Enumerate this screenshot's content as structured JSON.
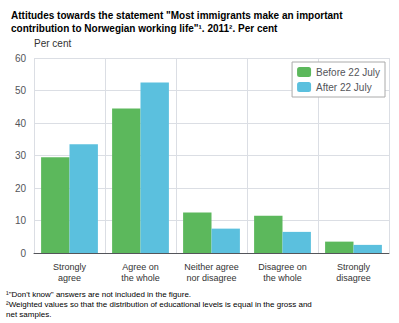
{
  "chart_data": {
    "type": "bar",
    "title": "Attitudes towards the statement \"Most immigrants make an important\ncontribution to Norwegian working life\"¹. 2011². Per cent",
    "ylabel": "Per cent",
    "categories": [
      "Strongly\nagree",
      "Agree on\nthe whole",
      "Neither agree\nnor disagree",
      "Disagree on\nthe whole",
      "Strongly\ndisagree"
    ],
    "series": [
      {
        "name": "Before 22 July",
        "color": "#5cb85c",
        "values": [
          29.5,
          44.5,
          12.5,
          11.5,
          3.5
        ]
      },
      {
        "name": "After 22 July",
        "color": "#5bc0de",
        "values": [
          33.5,
          52.5,
          7.5,
          6.5,
          2.5
        ]
      }
    ],
    "ylim": [
      0,
      60
    ],
    "yticks": [
      0,
      10,
      20,
      30,
      40,
      50,
      60
    ],
    "grid": true,
    "legend": "upper right",
    "annotations": [
      "¹\"Don't know\" answers are not included in the figure.",
      "²Weighted values so that the distribution of educational levels is equal in the gross and\nnet samples."
    ]
  }
}
